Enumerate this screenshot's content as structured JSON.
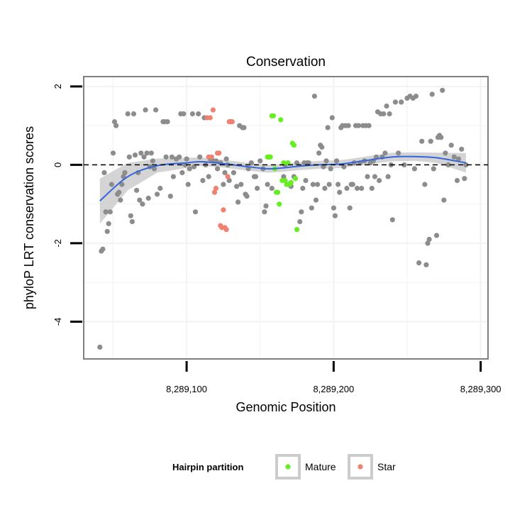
{
  "chart_data": {
    "type": "scatter",
    "title": "Conservation",
    "xlabel": "Genomic Position",
    "ylabel": "phyloP LRT conservation scores",
    "xlim": [
      8289030,
      8289305
    ],
    "ylim": [
      -4.95,
      2.25
    ],
    "x_ticks": [
      {
        "value": 8289100,
        "label": "8,289,100"
      },
      {
        "value": 8289200,
        "label": "8,289,200"
      },
      {
        "value": 8289300,
        "label": "8,289,300"
      }
    ],
    "y_ticks": [
      {
        "value": 2,
        "label": "2"
      },
      {
        "value": 0,
        "label": "0"
      },
      {
        "value": -2,
        "label": "-2"
      },
      {
        "value": -4,
        "label": "-4"
      }
    ],
    "reference_line": {
      "y": 0,
      "style": "dashed",
      "color": "#000000"
    },
    "legend": {
      "title": "Hairpin partition",
      "placement": "bottom",
      "entries": [
        {
          "label": "Mature",
          "color": "#66ee22"
        },
        {
          "label": "Star",
          "color": "#f08070"
        }
      ]
    },
    "colors": {
      "other": "#8c8c8c",
      "mature": "#66ee22",
      "star": "#f08070",
      "smooth": "#3366dd",
      "ribbon": "#cccccc",
      "panel_border": "#7f7f7f",
      "grid": "#f2f2f2"
    },
    "smooth": {
      "x": [
        8289041,
        8289060,
        8289080,
        8289100,
        8289110,
        8289125,
        8289140,
        8289155,
        8289165,
        8289175,
        8289190,
        8289205,
        8289220,
        8289240,
        8289255,
        8289270,
        8289290
      ],
      "y": [
        -0.92,
        -0.3,
        -0.02,
        0.05,
        0.08,
        0.03,
        -0.04,
        -0.1,
        -0.08,
        -0.04,
        0.0,
        0.02,
        0.1,
        0.2,
        0.21,
        0.18,
        0.05
      ],
      "lower": [
        -1.5,
        -0.65,
        -0.2,
        -0.08,
        -0.03,
        -0.07,
        -0.14,
        -0.2,
        -0.18,
        -0.14,
        -0.1,
        -0.08,
        0.0,
        0.09,
        0.1,
        0.05,
        -0.2
      ],
      "upper": [
        -0.35,
        0.05,
        0.16,
        0.18,
        0.19,
        0.13,
        0.06,
        0.0,
        0.02,
        0.06,
        0.1,
        0.12,
        0.2,
        0.31,
        0.32,
        0.31,
        0.3
      ]
    },
    "series": [
      {
        "name": "",
        "group": "other",
        "points": [
          [
            8289041,
            -4.65
          ],
          [
            8289042,
            -2.2
          ],
          [
            8289043,
            -2.15
          ],
          [
            8289044,
            -0.2
          ],
          [
            8289045,
            -1.2
          ],
          [
            8289046,
            -1.7
          ],
          [
            8289047,
            -1.5
          ],
          [
            8289048,
            -1.2
          ],
          [
            8289049,
            -0.5
          ],
          [
            8289050,
            0.3
          ],
          [
            8289051,
            1.1
          ],
          [
            8289052,
            1.0
          ],
          [
            8289053,
            -0.75
          ],
          [
            8289054,
            -0.7
          ],
          [
            8289055,
            -0.9
          ],
          [
            8289056,
            -0.5
          ],
          [
            8289057,
            -0.3
          ],
          [
            8289058,
            -0.2
          ],
          [
            8289060,
            1.3
          ],
          [
            8289061,
            0.2
          ],
          [
            8289062,
            -1.3
          ],
          [
            8289063,
            -1.45
          ],
          [
            8289064,
            1.3
          ],
          [
            8289065,
            0.25
          ],
          [
            8289066,
            -0.65
          ],
          [
            8289067,
            -0.2
          ],
          [
            8289068,
            -0.9
          ],
          [
            8289069,
            0.3
          ],
          [
            8289070,
            -1.0
          ],
          [
            8289071,
            0.2
          ],
          [
            8289072,
            1.4
          ],
          [
            8289073,
            0.3
          ],
          [
            8289074,
            -0.85
          ],
          [
            8289075,
            -0.05
          ],
          [
            8289076,
            0.3
          ],
          [
            8289077,
            0.1
          ],
          [
            8289078,
            -0.1
          ],
          [
            8289079,
            1.4
          ],
          [
            8289080,
            -0.75
          ],
          [
            8289082,
            -0.6
          ],
          [
            8289084,
            1.1
          ],
          [
            8289085,
            1.1
          ],
          [
            8289086,
            0.2
          ],
          [
            8289087,
            1.1
          ],
          [
            8289089,
            -0.8
          ],
          [
            8289090,
            0.2
          ],
          [
            8289091,
            -0.3
          ],
          [
            8289093,
            0.15
          ],
          [
            8289095,
            0.2
          ],
          [
            8289096,
            1.3
          ],
          [
            8289097,
            -0.2
          ],
          [
            8289098,
            1.3
          ],
          [
            8289099,
            0.0
          ],
          [
            8289100,
            0.15
          ],
          [
            8289101,
            -0.5
          ],
          [
            8289102,
            -0.1
          ],
          [
            8289104,
            1.3
          ],
          [
            8289105,
            -0.05
          ],
          [
            8289106,
            -1.2
          ],
          [
            8289108,
            1.3
          ],
          [
            8289109,
            0.2
          ],
          [
            8289111,
            -0.4
          ],
          [
            8289112,
            1.2
          ],
          [
            8289113,
            0.0
          ],
          [
            8289115,
            -0.3
          ],
          [
            8289116,
            0.15
          ],
          [
            8289118,
            0.1
          ],
          [
            8289120,
            0.1
          ],
          [
            8289121,
            -0.1
          ],
          [
            8289123,
            0.05
          ],
          [
            8289125,
            -0.5
          ],
          [
            8289126,
            -0.2
          ],
          [
            8289127,
            0.15
          ],
          [
            8289128,
            0.0
          ],
          [
            8289129,
            -0.4
          ],
          [
            8289132,
            -0.2
          ],
          [
            8289134,
            -0.55
          ],
          [
            8289135,
            -0.95
          ],
          [
            8289136,
            1.0
          ],
          [
            8289137,
            -0.5
          ],
          [
            8289138,
            0.95
          ],
          [
            8289139,
            0.95
          ],
          [
            8289140,
            -0.75
          ],
          [
            8289141,
            -0.8
          ],
          [
            8289142,
            -0.1
          ],
          [
            8289144,
            0.05
          ],
          [
            8289146,
            -0.3
          ],
          [
            8289147,
            -0.3
          ],
          [
            8289148,
            -0.6
          ],
          [
            8289150,
            0.1
          ],
          [
            8289152,
            -0.1
          ],
          [
            8289153,
            -1.2
          ],
          [
            8289154,
            -1.05
          ],
          [
            8289155,
            -0.5
          ],
          [
            8289156,
            0.2
          ],
          [
            8289158,
            -0.6
          ],
          [
            8289166,
            -0.3
          ],
          [
            8289167,
            0.0
          ],
          [
            8289169,
            -0.5
          ],
          [
            8289171,
            -0.55
          ],
          [
            8289173,
            -0.3
          ],
          [
            8289175,
            0.05
          ],
          [
            8289177,
            -1.45
          ],
          [
            8289178,
            -1.2
          ],
          [
            8289179,
            -0.6
          ],
          [
            8289180,
            0.05
          ],
          [
            8289181,
            -0.4
          ],
          [
            8289182,
            0.05
          ],
          [
            8289183,
            0.05
          ],
          [
            8289185,
            -1.1
          ],
          [
            8289186,
            -0.5
          ],
          [
            8289187,
            1.75
          ],
          [
            8289188,
            -0.9
          ],
          [
            8289189,
            -0.5
          ],
          [
            8289190,
            0.3
          ],
          [
            8289191,
            0.5
          ],
          [
            8289192,
            0.45
          ],
          [
            8289193,
            -0.05
          ],
          [
            8289194,
            -0.6
          ],
          [
            8289195,
            0.1
          ],
          [
            8289196,
            0.95
          ],
          [
            8289197,
            -0.5
          ],
          [
            8289198,
            -0.1
          ],
          [
            8289199,
            1.2
          ],
          [
            8289200,
            -1.1
          ],
          [
            8289201,
            -1.3
          ],
          [
            8289202,
            0.1
          ],
          [
            8289203,
            -0.5
          ],
          [
            8289204,
            -0.7
          ],
          [
            8289205,
            0.95
          ],
          [
            8289206,
            1.0
          ],
          [
            8289207,
            -0.05
          ],
          [
            8289208,
            1.0
          ],
          [
            8289209,
            -0.6
          ],
          [
            8289210,
            1.0
          ],
          [
            8289211,
            -1.1
          ],
          [
            8289212,
            -0.5
          ],
          [
            8289213,
            -0.5
          ],
          [
            8289214,
            0.05
          ],
          [
            8289215,
            1.0
          ],
          [
            8289216,
            -0.6
          ],
          [
            8289217,
            1.0
          ],
          [
            8289218,
            0.05
          ],
          [
            8289219,
            -0.6
          ],
          [
            8289220,
            1.0
          ],
          [
            8289221,
            0.1
          ],
          [
            8289222,
            1.0
          ],
          [
            8289223,
            -0.3
          ],
          [
            8289224,
            1.0
          ],
          [
            8289225,
            0.05
          ],
          [
            8289226,
            -0.6
          ],
          [
            8289227,
            0.1
          ],
          [
            8289228,
            -0.3
          ],
          [
            8289229,
            0.2
          ],
          [
            8289230,
            1.35
          ],
          [
            8289231,
            -0.4
          ],
          [
            8289232,
            1.3
          ],
          [
            8289233,
            0.2
          ],
          [
            8289234,
            1.3
          ],
          [
            8289235,
            0.3
          ],
          [
            8289236,
            1.5
          ],
          [
            8289237,
            -0.3
          ],
          [
            8289238,
            1.3
          ],
          [
            8289239,
            0.0
          ],
          [
            8289240,
            -1.4
          ],
          [
            8289242,
            1.6
          ],
          [
            8289244,
            0.3
          ],
          [
            8289246,
            1.6
          ],
          [
            8289248,
            0.0
          ],
          [
            8289250,
            1.7
          ],
          [
            8289252,
            1.75
          ],
          [
            8289254,
            1.7
          ],
          [
            8289255,
            -0.1
          ],
          [
            8289256,
            1.75
          ],
          [
            8289258,
            -2.5
          ],
          [
            8289260,
            0.6
          ],
          [
            8289262,
            -0.5
          ],
          [
            8289263,
            -2.55
          ],
          [
            8289264,
            -2.0
          ],
          [
            8289265,
            -1.9
          ],
          [
            8289266,
            0.6
          ],
          [
            8289267,
            1.8
          ],
          [
            8289268,
            -0.1
          ],
          [
            8289270,
            -1.8
          ],
          [
            8289271,
            0.7
          ],
          [
            8289272,
            0.75
          ],
          [
            8289273,
            0.7
          ],
          [
            8289274,
            1.9
          ],
          [
            8289275,
            -0.9
          ],
          [
            8289276,
            0.3
          ],
          [
            8289278,
            0.0
          ],
          [
            8289280,
            0.5
          ],
          [
            8289282,
            0.2
          ],
          [
            8289284,
            -0.4
          ],
          [
            8289285,
            0.15
          ],
          [
            8289287,
            0.4
          ],
          [
            8289289,
            -0.35
          ],
          [
            8289290,
            0.0
          ]
        ]
      },
      {
        "name": "Mature",
        "group": "mature",
        "points": [
          [
            8289155,
            0.2
          ],
          [
            8289156,
            0.2
          ],
          [
            8289157,
            0.2
          ],
          [
            8289158,
            1.25
          ],
          [
            8289159,
            1.25
          ],
          [
            8289160,
            -0.1
          ],
          [
            8289161,
            -0.7
          ],
          [
            8289162,
            -0.7
          ],
          [
            8289163,
            -1.0
          ],
          [
            8289164,
            1.15
          ],
          [
            8289165,
            -0.4
          ],
          [
            8289166,
            0.05
          ],
          [
            8289167,
            -0.4
          ],
          [
            8289168,
            -0.5
          ],
          [
            8289169,
            0.05
          ],
          [
            8289170,
            -0.5
          ],
          [
            8289171,
            -0.45
          ],
          [
            8289172,
            0.55
          ],
          [
            8289173,
            0.5
          ],
          [
            8289174,
            -0.35
          ],
          [
            8289175,
            -1.65
          ]
        ]
      },
      {
        "name": "Star",
        "group": "star",
        "points": [
          [
            8289114,
            1.2
          ],
          [
            8289115,
            0.2
          ],
          [
            8289116,
            1.2
          ],
          [
            8289117,
            0.2
          ],
          [
            8289118,
            1.4
          ],
          [
            8289119,
            -0.7
          ],
          [
            8289120,
            -0.6
          ],
          [
            8289121,
            0.3
          ],
          [
            8289122,
            0.3
          ],
          [
            8289123,
            -1.55
          ],
          [
            8289124,
            -1.6
          ],
          [
            8289125,
            -1.15
          ],
          [
            8289126,
            -1.6
          ],
          [
            8289127,
            -1.65
          ],
          [
            8289128,
            -0.3
          ],
          [
            8289129,
            1.1
          ],
          [
            8289130,
            1.1
          ],
          [
            8289131,
            1.1
          ]
        ]
      }
    ]
  }
}
